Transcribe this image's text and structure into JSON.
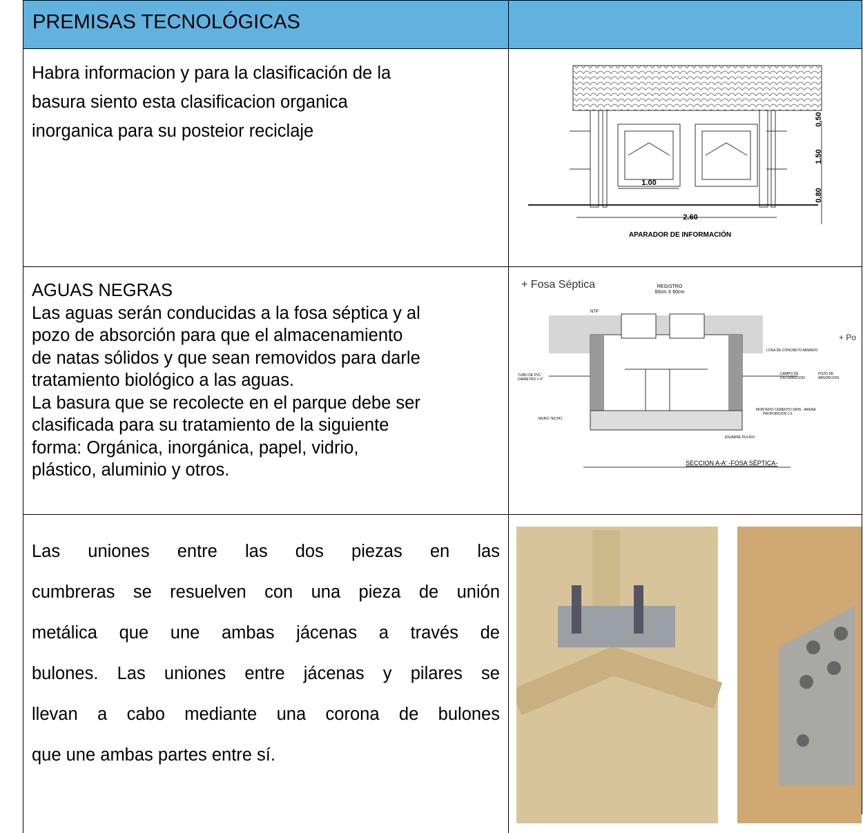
{
  "header": {
    "title": "PREMISAS TECNOLÓGICAS"
  },
  "rows": [
    {
      "lines": [
        "Habra informacion y  para la clasificación de la",
        "basura siento esta clasificacion organica",
        "inorganica para su posteior reciclaje"
      ],
      "figure": {
        "dims": [
          "0.50",
          "1.50",
          "0.80",
          "1.00",
          "2.60"
        ],
        "caption": "APARADOR DE INFORMACIÓN"
      }
    },
    {
      "lines": [
        "AGUAS NEGRAS",
        "Las aguas serán conducidas a la fosa séptica y al",
        "pozo de absorción para que el almacenamiento",
        "de natas sólidos y que sean removidos para darle",
        "tratamiento biológico a las aguas.",
        "La basura que se recolecte en el parque debe ser",
        "clasificada para su tratamiento de la siguiente",
        "forma: Orgánica, inorgánica, papel, vidrio,",
        "plástico, aluminio y otros."
      ],
      "figure": {
        "title": "+ Fosa Séptica",
        "registro": "REGISTRO",
        "registro_size": "60cm X 60cm",
        "npt": "NTP",
        "losa": "LOSA DE CONCRETO ARMADO",
        "campo": "CAMPO DE",
        "campo2": "DISTRIBUCION",
        "pozo": "POZO DE",
        "pozo2": "ABSORCION",
        "tubo": "TUBO DE PVC",
        "tubo2": "DIAMETRO = 4\"",
        "muro": "MURO TECHO",
        "mortero": "MORTERO CEMENTO GRIS - ARENA",
        "mortero2": "PROPORCION 1:5",
        "pulido": "ENJARRE PULIDO",
        "section": "SECCION A-A' -FOSA SÉPTICA-",
        "cut": "+ Po"
      }
    },
    {
      "lines": [
        "Las uniones entre las dos piezas en las",
        "cumbreras se resuelven con una pieza de unión",
        "metálica que une ambas jácenas a través de",
        "bulones. Las uniones entre jácenas y pilares se",
        "llevan a cabo mediante una corona de bulones",
        "que une ambas partes entre sí."
      ]
    }
  ]
}
